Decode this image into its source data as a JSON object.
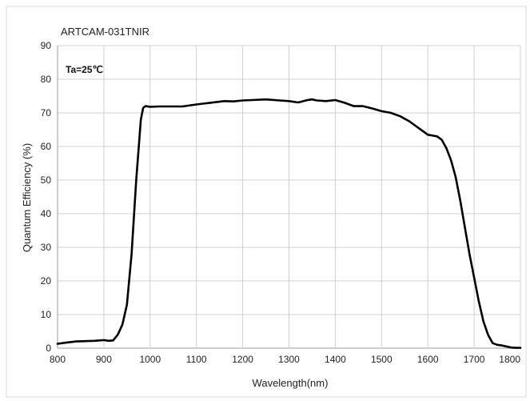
{
  "chart_data": {
    "type": "line",
    "title": "ARTCAM-031TNIR",
    "annotation": "Ta=25℃",
    "xlabel": "Wavelength(nm)",
    "ylabel": "Quantum Efficiency (%)",
    "xlim": [
      800,
      1800
    ],
    "ylim": [
      0,
      90
    ],
    "xticks": [
      800,
      900,
      1000,
      1100,
      1200,
      1300,
      1400,
      1500,
      1600,
      1700,
      1800
    ],
    "yticks": [
      0,
      10,
      20,
      30,
      40,
      50,
      60,
      70,
      80,
      90
    ],
    "grid": true,
    "line_color": "#000000",
    "series": [
      {
        "x": [
          800,
          820,
          840,
          860,
          880,
          900,
          910,
          920,
          930,
          940,
          950,
          960,
          970,
          980,
          985,
          990,
          1000,
          1020,
          1050,
          1070,
          1100,
          1130,
          1160,
          1180,
          1200,
          1220,
          1250,
          1280,
          1300,
          1320,
          1340,
          1350,
          1360,
          1380,
          1400,
          1420,
          1440,
          1460,
          1480,
          1500,
          1520,
          1540,
          1560,
          1580,
          1600,
          1620,
          1630,
          1640,
          1650,
          1660,
          1670,
          1680,
          1690,
          1700,
          1710,
          1720,
          1730,
          1740,
          1750,
          1760,
          1770,
          1780,
          1790,
          1800
        ],
        "y": [
          1.3,
          1.7,
          2.0,
          2.1,
          2.2,
          2.4,
          2.2,
          2.3,
          4.0,
          7.0,
          13.0,
          28.0,
          50.0,
          68.0,
          71.5,
          72.0,
          71.8,
          71.9,
          71.9,
          71.9,
          72.5,
          73.0,
          73.5,
          73.4,
          73.7,
          73.8,
          74.0,
          73.7,
          73.5,
          73.1,
          73.8,
          74.0,
          73.7,
          73.5,
          73.8,
          73.0,
          72.0,
          72.0,
          71.3,
          70.5,
          70.0,
          69.0,
          67.5,
          65.5,
          63.5,
          63.0,
          62.0,
          59.5,
          56.0,
          51.0,
          44.0,
          36.0,
          28.0,
          21.0,
          14.0,
          8.0,
          4.0,
          1.5,
          1.0,
          0.8,
          0.5,
          0.2,
          0.1,
          0.1
        ]
      }
    ]
  }
}
